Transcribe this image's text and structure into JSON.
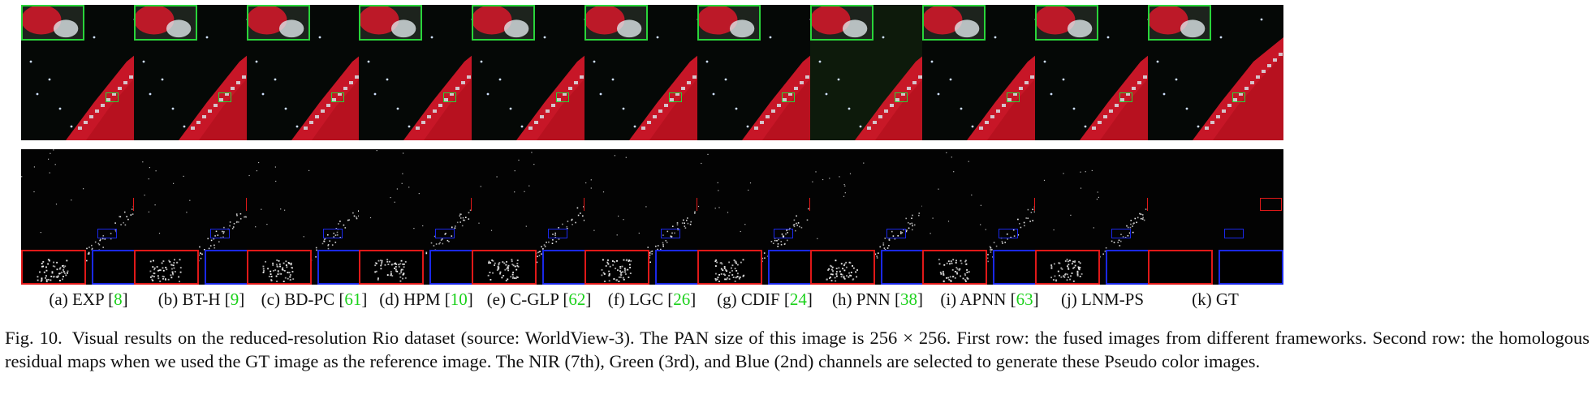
{
  "panels": [
    {
      "label": "(a) EXP [",
      "ref": "8",
      "close": "]"
    },
    {
      "label": "(b) BT-H [",
      "ref": "9",
      "close": "]"
    },
    {
      "label": "(c) BD-PC [",
      "ref": "61",
      "close": "]"
    },
    {
      "label": "(d) HPM [",
      "ref": "10",
      "close": "]"
    },
    {
      "label": "(e) C-GLP [",
      "ref": "62",
      "close": "]"
    },
    {
      "label": "(f) LGC [",
      "ref": "26",
      "close": "]"
    },
    {
      "label": "(g) CDIF [",
      "ref": "24",
      "close": "]"
    },
    {
      "label": "(h) PNN [",
      "ref": "38",
      "close": "]"
    },
    {
      "label": "(i) APNN [",
      "ref": "63",
      "close": "]"
    },
    {
      "label": "(j) LNM-PS",
      "ref": "",
      "close": ""
    },
    {
      "label": "(k) GT",
      "ref": "",
      "close": ""
    }
  ],
  "caption": {
    "fig_number": "Fig. 10.",
    "text": "Visual results on the reduced-resolution Rio dataset (source: WorldView-3). The PAN size of this image is 256 × 256. First row: the fused images from different frameworks. Second row: the homologous residual maps when we used the GT image as the reference image. The NIR (7th), Green (3rd), and Blue (2nd) channels are selected to generate these Pseudo color images."
  },
  "colors": {
    "inset_green": "#29d43a",
    "inset_red": "#e01818",
    "inset_blue": "#1a28e8",
    "ref_green": "#1bd11b",
    "vegetation_red": "#d8182a"
  }
}
